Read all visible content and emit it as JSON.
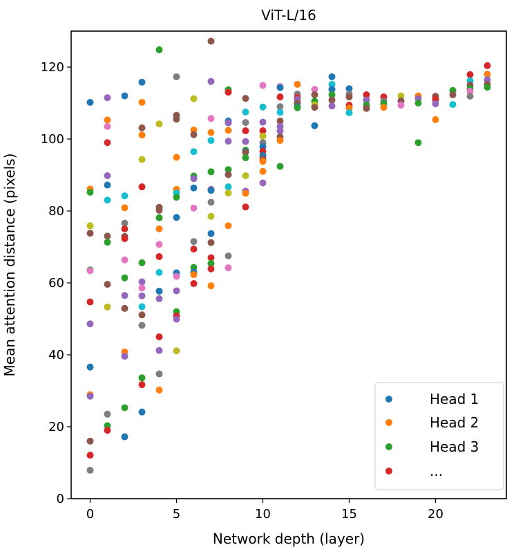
{
  "chart_data": {
    "type": "scatter",
    "title": "ViT-L/16",
    "xlabel": "Network depth (layer)",
    "ylabel": "Mean attention distance (pixels)",
    "xlim": [
      -1.1,
      24.1
    ],
    "ylim": [
      0,
      130
    ],
    "xticks": [
      0,
      5,
      10,
      15,
      20
    ],
    "yticks": [
      0,
      20,
      40,
      60,
      80,
      100,
      120
    ],
    "grid": false,
    "palette": [
      "#1f77b4",
      "#ff7f0e",
      "#2ca02c",
      "#d62728",
      "#9467bd",
      "#8c564b",
      "#e377c2",
      "#7f7f7f",
      "#bcbd22",
      "#17becf"
    ],
    "legend": {
      "placement": "lower-right",
      "entries": [
        {
          "label": "Head 1",
          "color": "#1f77b4"
        },
        {
          "label": "Head 2",
          "color": "#ff7f0e"
        },
        {
          "label": "Head 3",
          "color": "#2ca02c"
        },
        {
          "label": "...",
          "color": "#d62728"
        }
      ]
    },
    "points_format": [
      "layer",
      "mean_distance",
      "color_index"
    ],
    "points": [
      [
        0,
        110.2,
        0
      ],
      [
        0,
        86.1,
        1
      ],
      [
        0,
        85.2,
        2
      ],
      [
        0,
        75.9,
        8
      ],
      [
        0,
        73.8,
        5
      ],
      [
        0,
        63.6,
        2
      ],
      [
        0,
        63.4,
        6
      ],
      [
        0,
        54.7,
        3
      ],
      [
        0,
        48.6,
        4
      ],
      [
        0,
        36.6,
        0
      ],
      [
        0,
        28.9,
        1
      ],
      [
        0,
        28.5,
        4
      ],
      [
        0,
        16,
        5
      ],
      [
        0,
        12.1,
        3
      ],
      [
        0,
        7.9,
        7
      ],
      [
        1,
        111.5,
        4
      ],
      [
        1,
        105.3,
        1
      ],
      [
        1,
        103.5,
        6
      ],
      [
        1,
        99,
        3
      ],
      [
        1,
        89.8,
        4
      ],
      [
        1,
        87.2,
        0
      ],
      [
        1,
        83,
        9
      ],
      [
        1,
        73,
        5
      ],
      [
        1,
        71.3,
        2
      ],
      [
        1,
        59.6,
        5
      ],
      [
        1,
        53.3,
        8
      ],
      [
        1,
        23.5,
        7
      ],
      [
        1,
        20.3,
        2
      ],
      [
        1,
        19,
        3
      ],
      [
        2,
        112,
        0
      ],
      [
        2,
        84.2,
        9
      ],
      [
        2,
        80.9,
        1
      ],
      [
        2,
        76.6,
        7
      ],
      [
        2,
        75,
        3
      ],
      [
        2,
        72.9,
        5
      ],
      [
        2,
        72.3,
        3
      ],
      [
        2,
        66.4,
        6
      ],
      [
        2,
        61.4,
        2
      ],
      [
        2,
        56.5,
        4
      ],
      [
        2,
        52.9,
        5
      ],
      [
        2,
        40.8,
        1
      ],
      [
        2,
        39.6,
        4
      ],
      [
        2,
        25.3,
        2
      ],
      [
        2,
        17.2,
        0
      ],
      [
        3,
        115.8,
        0
      ],
      [
        3,
        110.2,
        1
      ],
      [
        3,
        103.1,
        5
      ],
      [
        3,
        101.1,
        1
      ],
      [
        3,
        94.3,
        8
      ],
      [
        3,
        86.7,
        3
      ],
      [
        3,
        65.6,
        2
      ],
      [
        3,
        60.3,
        4
      ],
      [
        3,
        58.6,
        6
      ],
      [
        3,
        56.4,
        4
      ],
      [
        3,
        53.4,
        9
      ],
      [
        3,
        51.1,
        5
      ],
      [
        3,
        48.2,
        7
      ],
      [
        3,
        33.6,
        2
      ],
      [
        3,
        31.7,
        3
      ],
      [
        3,
        24.1,
        0
      ],
      [
        4,
        124.8,
        2
      ],
      [
        4,
        104.2,
        8
      ],
      [
        4,
        81,
        5
      ],
      [
        4,
        80.2,
        5
      ],
      [
        4,
        78.1,
        2
      ],
      [
        4,
        75,
        1
      ],
      [
        4,
        70.7,
        6
      ],
      [
        4,
        67.3,
        3
      ],
      [
        4,
        62.9,
        9
      ],
      [
        4,
        57.7,
        0
      ],
      [
        4,
        55.6,
        4
      ],
      [
        4,
        45,
        3
      ],
      [
        4,
        41.2,
        4
      ],
      [
        4,
        34.7,
        7
      ],
      [
        4,
        30.2,
        1
      ],
      [
        5,
        117.3,
        7
      ],
      [
        5,
        106.6,
        5
      ],
      [
        5,
        105.5,
        5
      ],
      [
        5,
        94.9,
        1
      ],
      [
        5,
        86,
        1
      ],
      [
        5,
        85,
        9
      ],
      [
        5,
        83.8,
        2
      ],
      [
        5,
        78.2,
        0
      ],
      [
        5,
        62.8,
        0
      ],
      [
        5,
        61.8,
        6
      ],
      [
        5,
        57.8,
        4
      ],
      [
        5,
        52,
        2
      ],
      [
        5,
        50.8,
        3
      ],
      [
        5,
        49.9,
        4
      ],
      [
        5,
        41.1,
        8
      ],
      [
        6,
        111.2,
        8
      ],
      [
        6,
        102.5,
        1
      ],
      [
        6,
        101.2,
        5
      ],
      [
        6,
        96.5,
        9
      ],
      [
        6,
        89.7,
        2
      ],
      [
        6,
        89,
        4
      ],
      [
        6,
        86.4,
        0
      ],
      [
        6,
        80.8,
        6
      ],
      [
        6,
        71.5,
        7
      ],
      [
        6,
        69.4,
        3
      ],
      [
        6,
        64.3,
        2
      ],
      [
        6,
        63,
        0
      ],
      [
        6,
        62.3,
        1
      ],
      [
        6,
        59.8,
        3
      ],
      [
        7,
        127.2,
        5
      ],
      [
        7,
        116,
        4
      ],
      [
        7,
        105.7,
        6
      ],
      [
        7,
        101.8,
        1
      ],
      [
        7,
        99.6,
        9
      ],
      [
        7,
        90.9,
        2
      ],
      [
        7,
        86,
        4
      ],
      [
        7,
        85.7,
        0
      ],
      [
        7,
        82.4,
        7
      ],
      [
        7,
        78.5,
        8
      ],
      [
        7,
        73.7,
        0
      ],
      [
        7,
        71.2,
        5
      ],
      [
        7,
        67,
        3
      ],
      [
        7,
        65.4,
        2
      ],
      [
        7,
        63.9,
        3
      ],
      [
        7,
        59.2,
        1
      ],
      [
        8,
        113.7,
        2
      ],
      [
        8,
        113,
        3
      ],
      [
        8,
        105,
        0
      ],
      [
        8,
        104.5,
        4
      ],
      [
        8,
        102.4,
        1
      ],
      [
        8,
        99.4,
        4
      ],
      [
        8,
        91.5,
        2
      ],
      [
        8,
        90.1,
        5
      ],
      [
        8,
        86.7,
        9
      ],
      [
        8,
        85,
        8
      ],
      [
        8,
        75.9,
        1
      ],
      [
        8,
        67.5,
        7
      ],
      [
        8,
        64.2,
        6
      ],
      [
        9,
        111.3,
        5
      ],
      [
        9,
        107.5,
        9
      ],
      [
        9,
        104.6,
        7
      ],
      [
        9,
        102.3,
        3
      ],
      [
        9,
        99.3,
        4
      ],
      [
        9,
        96.9,
        2
      ],
      [
        9,
        96.5,
        0
      ],
      [
        9,
        96.3,
        5
      ],
      [
        9,
        94.8,
        2
      ],
      [
        9,
        89.8,
        8
      ],
      [
        9,
        85.5,
        4
      ],
      [
        9,
        84.9,
        1
      ],
      [
        9,
        81.1,
        3
      ],
      [
        10,
        114.9,
        6
      ],
      [
        10,
        108.9,
        9
      ],
      [
        10,
        104.7,
        4
      ],
      [
        10,
        102.3,
        3
      ],
      [
        10,
        100.8,
        8
      ],
      [
        10,
        99,
        7
      ],
      [
        10,
        97.9,
        0
      ],
      [
        10,
        96.6,
        3
      ],
      [
        10,
        95.4,
        0
      ],
      [
        10,
        94.5,
        5
      ],
      [
        10,
        93.8,
        1
      ],
      [
        10,
        91,
        1
      ],
      [
        10,
        87.8,
        4
      ],
      [
        11,
        114.6,
        6
      ],
      [
        11,
        114.3,
        0
      ],
      [
        11,
        111.7,
        3
      ],
      [
        11,
        109,
        7
      ],
      [
        11,
        107.4,
        9
      ],
      [
        11,
        105,
        5
      ],
      [
        11,
        103.5,
        4
      ],
      [
        11,
        102.3,
        4
      ],
      [
        11,
        100.6,
        5
      ],
      [
        11,
        99.6,
        1
      ],
      [
        11,
        92.4,
        2
      ],
      [
        12,
        115.2,
        1
      ],
      [
        12,
        112.5,
        7
      ],
      [
        12,
        111.5,
        3
      ],
      [
        12,
        111,
        4
      ],
      [
        12,
        110,
        5
      ],
      [
        12,
        109,
        0
      ],
      [
        12,
        108.7,
        2
      ],
      [
        13,
        113.8,
        6
      ],
      [
        13,
        112.3,
        5
      ],
      [
        13,
        110.5,
        2
      ],
      [
        13,
        109.5,
        8
      ],
      [
        13,
        108.8,
        5
      ],
      [
        13,
        103.7,
        0
      ],
      [
        14,
        117.3,
        0
      ],
      [
        14,
        115.2,
        9
      ],
      [
        14,
        113.8,
        0
      ],
      [
        14,
        112.3,
        2
      ],
      [
        14,
        110.8,
        5
      ],
      [
        14,
        109.2,
        4
      ],
      [
        15,
        114,
        0
      ],
      [
        15,
        112.5,
        7
      ],
      [
        15,
        111.7,
        5
      ],
      [
        15,
        109.4,
        3
      ],
      [
        15,
        108.6,
        1
      ],
      [
        15,
        107.3,
        9
      ],
      [
        16,
        112.3,
        3
      ],
      [
        16,
        110.8,
        4
      ],
      [
        16,
        109.5,
        2
      ],
      [
        16,
        108.5,
        5
      ],
      [
        17,
        111.7,
        3
      ],
      [
        17,
        110.5,
        7
      ],
      [
        17,
        109.8,
        2
      ],
      [
        17,
        108.8,
        1
      ],
      [
        18,
        112,
        8
      ],
      [
        18,
        110.6,
        5
      ],
      [
        18,
        109.4,
        6
      ],
      [
        19,
        112,
        1
      ],
      [
        19,
        111.2,
        4
      ],
      [
        19,
        110,
        2
      ],
      [
        19,
        99,
        2
      ],
      [
        20,
        111.9,
        5
      ],
      [
        20,
        111,
        3
      ],
      [
        20,
        109.8,
        4
      ],
      [
        20,
        105.4,
        1
      ],
      [
        21,
        113.5,
        2
      ],
      [
        21,
        112.3,
        5
      ],
      [
        21,
        109.6,
        9
      ],
      [
        22,
        117.9,
        3
      ],
      [
        22,
        116.2,
        9
      ],
      [
        22,
        115,
        5
      ],
      [
        22,
        114,
        2
      ],
      [
        22,
        113.3,
        6
      ],
      [
        22,
        111.9,
        7
      ],
      [
        23,
        120.4,
        3
      ],
      [
        23,
        118,
        1
      ],
      [
        23,
        116.5,
        4
      ],
      [
        23,
        115.2,
        5
      ],
      [
        23,
        114.4,
        2
      ]
    ]
  }
}
